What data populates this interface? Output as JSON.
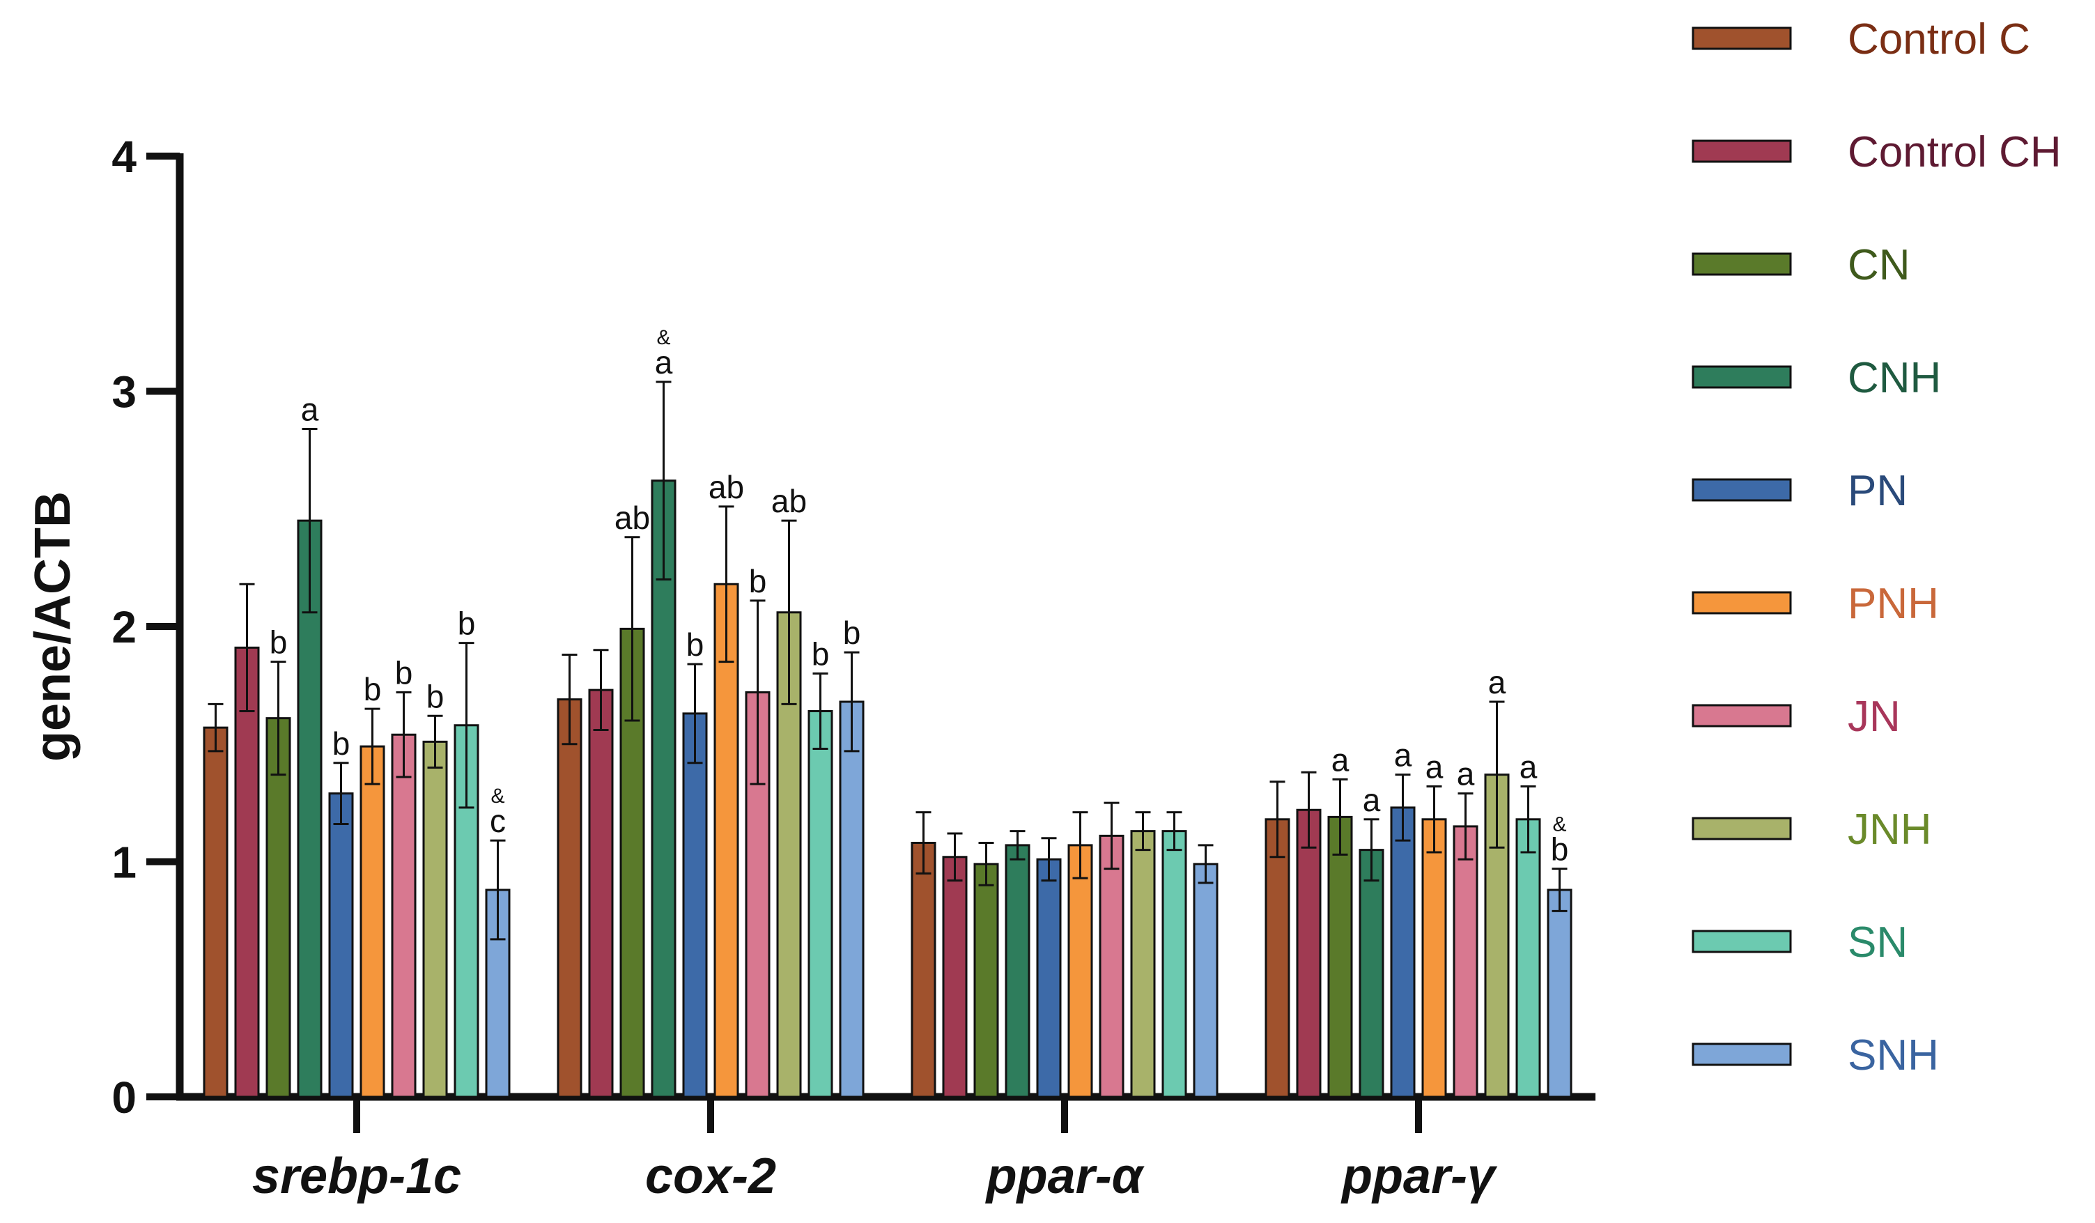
{
  "chart_data": {
    "type": "bar",
    "ylabel": "gene/ACTB",
    "xlabel": "",
    "ylim": [
      0,
      4
    ],
    "yticks": [
      "0",
      "1",
      "2",
      "3",
      "4"
    ],
    "categories": [
      "srebp-1c",
      "cox-2",
      "ppar-α",
      "ppar-γ"
    ],
    "legend_position": "right",
    "series": [
      {
        "name": "Control C",
        "color": "#a0522d",
        "text_color": "#7a2e14",
        "values": [
          1.57,
          1.69,
          1.08,
          1.18
        ],
        "errors": [
          0.1,
          0.19,
          0.13,
          0.16
        ],
        "labels": [
          "",
          "",
          "",
          ""
        ]
      },
      {
        "name": "Control CH",
        "color": "#a03a52",
        "text_color": "#5e1a32",
        "values": [
          1.91,
          1.73,
          1.02,
          1.22
        ],
        "errors": [
          0.27,
          0.17,
          0.1,
          0.16
        ],
        "labels": [
          "",
          "",
          "",
          ""
        ]
      },
      {
        "name": "CN",
        "color": "#5a7a2a",
        "text_color": "#3f5a1c",
        "values": [
          1.61,
          1.99,
          0.99,
          1.19
        ],
        "errors": [
          0.24,
          0.39,
          0.09,
          0.16
        ],
        "labels": [
          "b",
          "ab",
          "",
          "a"
        ]
      },
      {
        "name": "CNH",
        "color": "#2e7d5c",
        "text_color": "#1f5a40",
        "values": [
          2.45,
          2.62,
          1.07,
          1.05
        ],
        "errors": [
          0.39,
          0.42,
          0.06,
          0.13
        ],
        "labels": [
          "a",
          "&a",
          "",
          "a"
        ]
      },
      {
        "name": "PN",
        "color": "#3d6aa8",
        "text_color": "#2a4a7a",
        "values": [
          1.29,
          1.63,
          1.01,
          1.23
        ],
        "errors": [
          0.13,
          0.21,
          0.09,
          0.14
        ],
        "labels": [
          "b",
          "b",
          "",
          "a"
        ]
      },
      {
        "name": "PNH",
        "color": "#f5963c",
        "text_color": "#c9683a",
        "values": [
          1.49,
          2.18,
          1.07,
          1.18
        ],
        "errors": [
          0.16,
          0.33,
          0.14,
          0.14
        ],
        "labels": [
          "b",
          "ab",
          "",
          "a"
        ]
      },
      {
        "name": "JN",
        "color": "#d87890",
        "text_color": "#a8365a",
        "values": [
          1.54,
          1.72,
          1.11,
          1.15
        ],
        "errors": [
          0.18,
          0.39,
          0.14,
          0.14
        ],
        "labels": [
          "b",
          "b",
          "",
          "a"
        ]
      },
      {
        "name": "JNH",
        "color": "#a8b26a",
        "text_color": "#6a8a2a",
        "values": [
          1.51,
          2.06,
          1.13,
          1.37
        ],
        "errors": [
          0.11,
          0.39,
          0.08,
          0.31
        ],
        "labels": [
          "b",
          "ab",
          "",
          "a"
        ]
      },
      {
        "name": "SN",
        "color": "#6ccab0",
        "text_color": "#2a8a6a",
        "values": [
          1.58,
          1.64,
          1.13,
          1.18
        ],
        "errors": [
          0.35,
          0.16,
          0.08,
          0.14
        ],
        "labels": [
          "b",
          "b",
          "",
          "a"
        ]
      },
      {
        "name": "SNH",
        "color": "#7ea6d8",
        "text_color": "#3a64a0",
        "values": [
          0.88,
          1.68,
          0.99,
          0.88
        ],
        "errors": [
          0.21,
          0.21,
          0.08,
          0.09
        ],
        "labels": [
          "&c",
          "b",
          "",
          "&b"
        ]
      }
    ]
  }
}
